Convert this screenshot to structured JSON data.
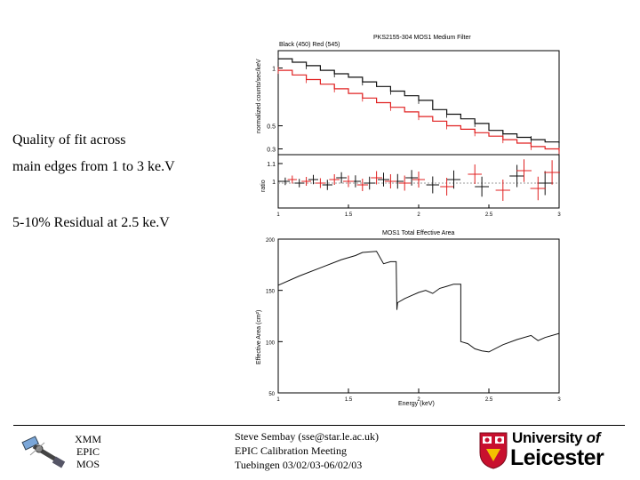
{
  "bullets": {
    "line1": "Quality of fit across",
    "line2": "main edges from 1 to 3 ke.V",
    "line3": "5-10% Residual at 2.5 ke.V"
  },
  "footer": {
    "xmm": [
      "XMM",
      "EPIC",
      "MOS"
    ],
    "credit": [
      "Steve Sembay (sse@star.le.ac.uk)",
      "EPIC Calibration Meeting",
      "Tuebingen 03/02/03-06/02/03"
    ],
    "logo": {
      "university_of": "University",
      "of": "of",
      "leicester": "Leicester"
    }
  },
  "colors": {
    "black_series": "#111111",
    "red_series": "#e02020",
    "logo_red": "#c8102e"
  },
  "chart_data": [
    {
      "type": "line",
      "panel": "spectrum",
      "title": "PKS2155-304 MOS1 Medium Filter",
      "subtitle": "Black (450) Red (545)",
      "ylabel": "normalized counts/sec/keV",
      "xlim": [
        1,
        3
      ],
      "ylim": [
        0.25,
        1.15
      ],
      "ytick_labels": [
        "0.3",
        "0.5",
        "1"
      ],
      "series": [
        {
          "name": "Black (450)",
          "color": "#111111",
          "x": [
            1.0,
            1.1,
            1.2,
            1.3,
            1.4,
            1.5,
            1.6,
            1.7,
            1.8,
            1.9,
            2.0,
            2.1,
            2.2,
            2.3,
            2.4,
            2.5,
            2.6,
            2.7,
            2.8,
            2.9,
            3.0
          ],
          "y": [
            1.08,
            1.05,
            1.02,
            0.98,
            0.95,
            0.92,
            0.88,
            0.84,
            0.8,
            0.76,
            0.72,
            0.64,
            0.6,
            0.56,
            0.52,
            0.46,
            0.43,
            0.4,
            0.38,
            0.36,
            0.35
          ]
        },
        {
          "name": "Red (545)",
          "color": "#e02020",
          "x": [
            1.0,
            1.1,
            1.2,
            1.3,
            1.4,
            1.5,
            1.6,
            1.7,
            1.8,
            1.9,
            2.0,
            2.1,
            2.2,
            2.3,
            2.4,
            2.5,
            2.6,
            2.7,
            2.8,
            2.9,
            3.0
          ],
          "y": [
            0.98,
            0.94,
            0.9,
            0.86,
            0.82,
            0.78,
            0.74,
            0.7,
            0.66,
            0.62,
            0.58,
            0.54,
            0.5,
            0.47,
            0.44,
            0.41,
            0.38,
            0.35,
            0.32,
            0.3,
            0.28
          ]
        }
      ]
    },
    {
      "type": "scatter",
      "panel": "ratio",
      "ylabel": "ratio",
      "xlim": [
        1,
        3
      ],
      "ylim": [
        0.85,
        1.15
      ],
      "ytick_labels": [
        "1",
        "1.1"
      ],
      "xtick_labels": [
        "1",
        "1.5",
        "2",
        "2.5",
        "3"
      ],
      "series": [
        {
          "name": "Black (450)",
          "color": "#111111",
          "x": [
            1.05,
            1.15,
            1.25,
            1.35,
            1.45,
            1.55,
            1.65,
            1.75,
            1.85,
            1.95,
            2.1,
            2.25,
            2.45,
            2.7,
            2.9
          ],
          "y": [
            1.0,
            0.99,
            1.01,
            0.98,
            1.02,
            1.0,
            0.99,
            1.01,
            1.0,
            1.02,
            0.98,
            1.01,
            0.97,
            1.03,
            0.99
          ]
        },
        {
          "name": "Red (545)",
          "color": "#e02020",
          "x": [
            1.1,
            1.2,
            1.3,
            1.4,
            1.5,
            1.6,
            1.7,
            1.8,
            1.9,
            2.0,
            2.2,
            2.4,
            2.6,
            2.75,
            2.85,
            2.95
          ],
          "y": [
            1.01,
            1.0,
            0.99,
            1.01,
            1.0,
            0.98,
            1.02,
            1.0,
            0.99,
            1.01,
            0.97,
            1.04,
            0.95,
            1.06,
            0.96,
            1.05
          ]
        }
      ]
    },
    {
      "type": "line",
      "panel": "effective-area",
      "title": "MOS1 Total Effective Area",
      "xlabel": "Energy (keV)",
      "ylabel": "Effective Area (cm²)",
      "xlim": [
        1,
        3
      ],
      "ylim": [
        50,
        200
      ],
      "xtick_labels": [
        "1",
        "1.5",
        "2",
        "2.5",
        "3"
      ],
      "ytick_labels": [
        "50",
        "100",
        "150",
        "200"
      ],
      "series": [
        {
          "name": "MOS1 total effective area",
          "color": "#111111",
          "x": [
            1.0,
            1.15,
            1.3,
            1.45,
            1.55,
            1.6,
            1.7,
            1.75,
            1.8,
            1.84,
            1.845,
            1.85,
            1.9,
            1.95,
            2.0,
            2.05,
            2.1,
            2.15,
            2.2,
            2.25,
            2.3,
            2.3,
            2.35,
            2.4,
            2.45,
            2.5,
            2.6,
            2.7,
            2.8,
            2.85,
            2.9,
            3.0
          ],
          "y": [
            155,
            164,
            172,
            180,
            184,
            187,
            188,
            176,
            178,
            178,
            131,
            138,
            142,
            145,
            148,
            150,
            147,
            152,
            154,
            156,
            156,
            100,
            98,
            93,
            91,
            90,
            97,
            102,
            106,
            101,
            104,
            108
          ]
        }
      ]
    }
  ]
}
